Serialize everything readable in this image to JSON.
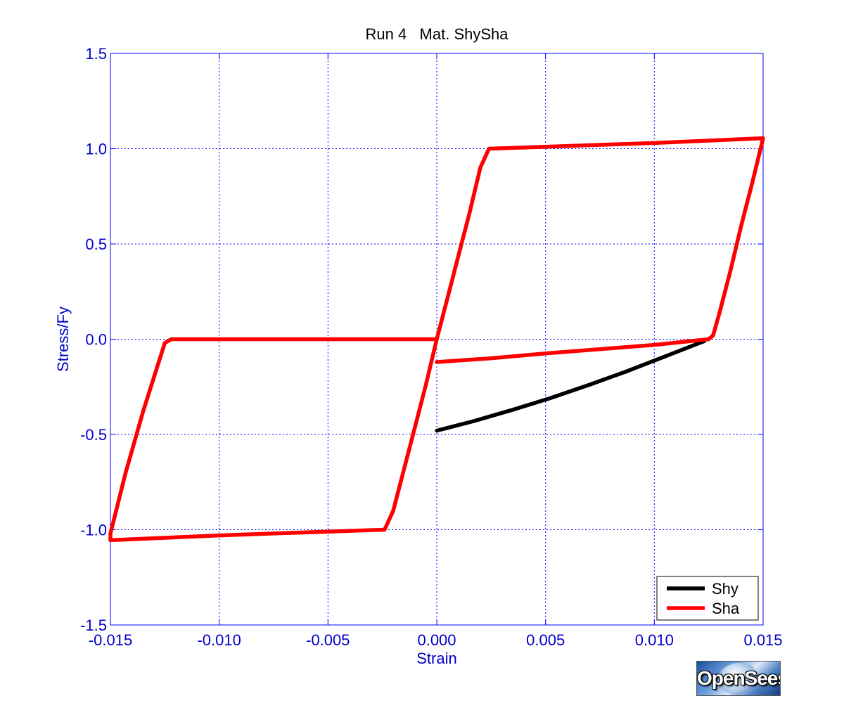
{
  "chart_data": {
    "type": "line",
    "title": "Run 4   Mat. ShySha",
    "xlabel": "Strain",
    "ylabel": "Stress/Fy",
    "xlim": [
      -0.015,
      0.015
    ],
    "ylim": [
      -1.5,
      1.5
    ],
    "xticks": [
      -0.015,
      -0.01,
      -0.005,
      0.0,
      0.005,
      0.01,
      0.015
    ],
    "xtick_labels": [
      "-0.015",
      "-0.010",
      "-0.005",
      "0.000",
      "0.005",
      "0.010",
      "0.015"
    ],
    "yticks": [
      1.5,
      1.0,
      0.5,
      0.0,
      -0.5,
      -1.0,
      -1.5
    ],
    "ytick_labels": [
      "1.5",
      "1.0",
      "0.5",
      "0.0",
      "-0.5",
      "-1.0",
      "-1.5"
    ],
    "grid": true,
    "legend_position": "bottom-right",
    "series": [
      {
        "name": "Shy",
        "color": "#000000",
        "points": [
          [
            0.0,
            -0.48
          ],
          [
            0.0017,
            -0.43
          ],
          [
            0.0035,
            -0.37
          ],
          [
            0.0052,
            -0.31
          ],
          [
            0.007,
            -0.24
          ],
          [
            0.0087,
            -0.17
          ],
          [
            0.0105,
            -0.09
          ],
          [
            0.0123,
            -0.01
          ]
        ]
      },
      {
        "name": "Sha",
        "color": "#ff0000",
        "points": [
          [
            0.0,
            0.0
          ],
          [
            0.0005,
            0.22
          ],
          [
            0.001,
            0.44
          ],
          [
            0.0015,
            0.66
          ],
          [
            0.002,
            0.9
          ],
          [
            0.0024,
            1.0
          ],
          [
            0.005,
            1.01
          ],
          [
            0.01,
            1.03
          ],
          [
            0.015,
            1.055
          ],
          [
            0.0145,
            0.82
          ],
          [
            0.014,
            0.6
          ],
          [
            0.0135,
            0.36
          ],
          [
            0.013,
            0.14
          ],
          [
            0.0127,
            0.02
          ],
          [
            0.0125,
            0.0
          ],
          [
            0.01,
            -0.03
          ],
          [
            0.005,
            -0.075
          ],
          [
            0.0025,
            -0.1
          ],
          [
            0.0,
            -0.12
          ]
        ]
      },
      {
        "name": "",
        "color": "#ff0000",
        "points": [
          [
            0.0,
            0.0
          ],
          [
            -0.005,
            0.0
          ],
          [
            -0.01,
            0.0
          ],
          [
            -0.0122,
            0.0
          ],
          [
            -0.0125,
            -0.02
          ],
          [
            -0.0135,
            -0.38
          ],
          [
            -0.0143,
            -0.7
          ],
          [
            -0.015,
            -1.02
          ],
          [
            -0.015,
            -1.055
          ],
          [
            -0.01,
            -1.03
          ],
          [
            -0.005,
            -1.01
          ],
          [
            -0.0024,
            -1.0
          ],
          [
            -0.002,
            -0.9
          ],
          [
            -0.0015,
            -0.68
          ],
          [
            -0.001,
            -0.46
          ],
          [
            -0.0005,
            -0.24
          ],
          [
            0.0,
            0.0
          ]
        ]
      }
    ]
  },
  "logo": {
    "text": "OpenSees"
  }
}
